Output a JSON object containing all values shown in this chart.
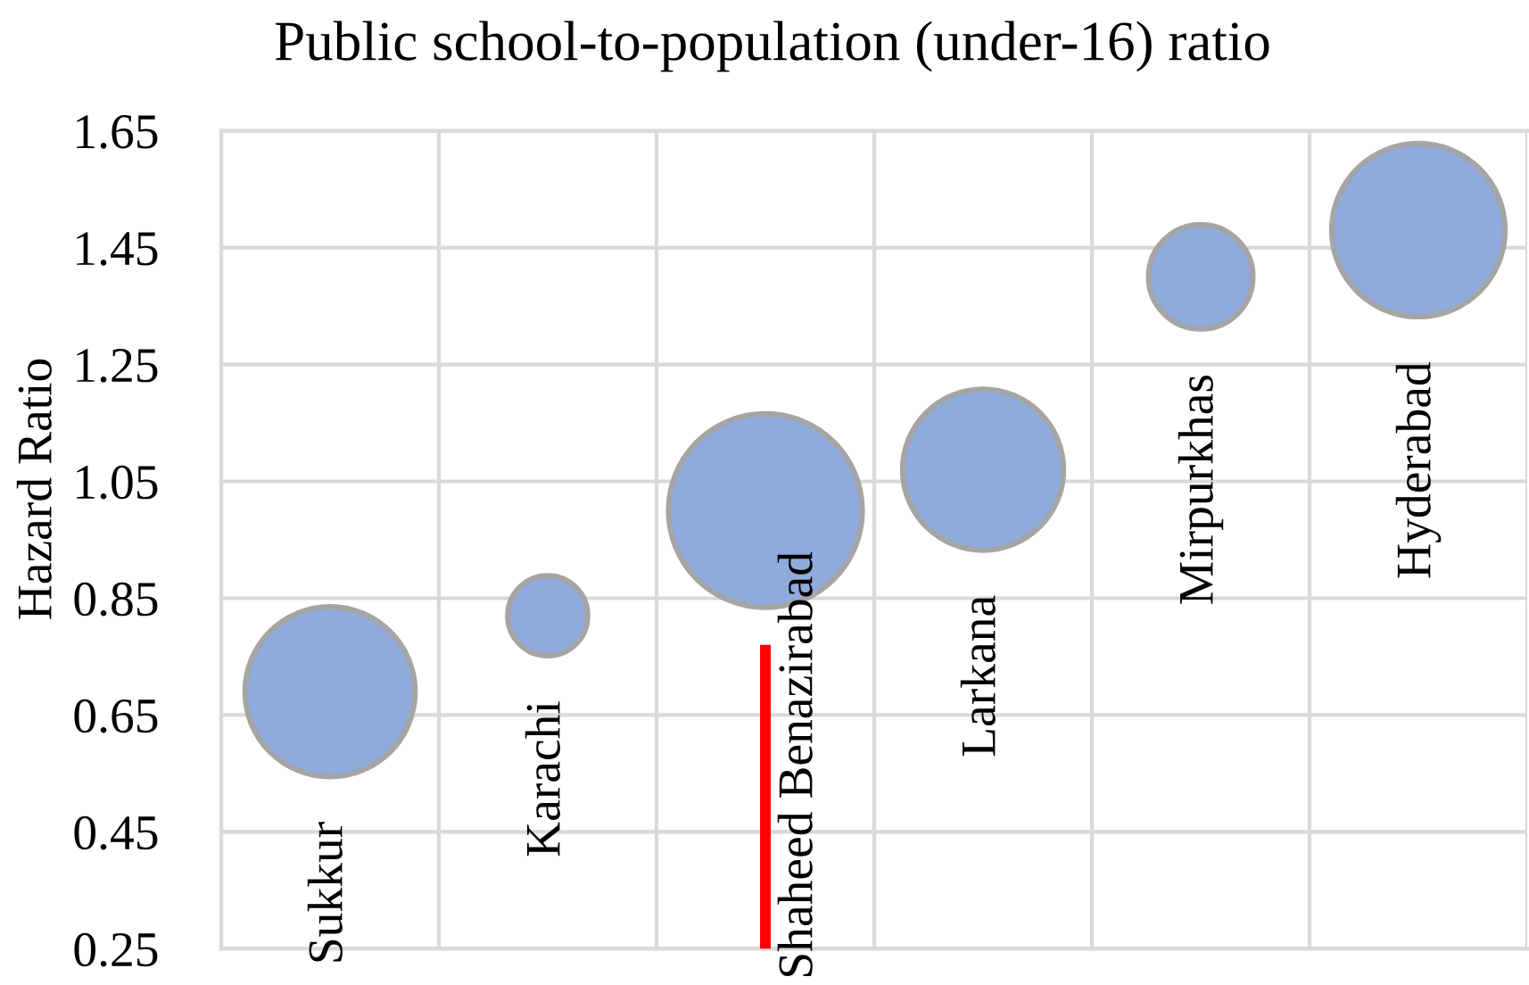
{
  "chart_data": {
    "type": "bubble",
    "title": "Public school-to-population (under-16) ratio",
    "ylabel": "Hazard Ratio",
    "categories": [
      "Sukkur",
      "Karachi",
      "Shaheed Benazirabad",
      "Larkana",
      "Mirpurkhas",
      "Hyderabad"
    ],
    "series": [
      {
        "color": "#8faadc",
        "values": [
          0.69,
          0.82,
          1.0,
          1.07,
          1.4,
          1.48
        ],
        "sizes": [
          0.77,
          0.17,
          1,
          0.69,
          0.29,
          0.8
        ]
      },
      {
        "type": "line",
        "x": [
          "Shaheed Benazirabad",
          "Shaheed Benazirabad"
        ],
        "values": [
          0.25,
          0.77
        ],
        "color": "#ff0000"
      }
    ],
    "ylim": [
      0.25,
      1.65
    ],
    "yticks": [
      0.25,
      0.45,
      0.65,
      0.85,
      1.05,
      1.25,
      1.45,
      1.65
    ],
    "grid": true,
    "tick_labels": "y"
  }
}
